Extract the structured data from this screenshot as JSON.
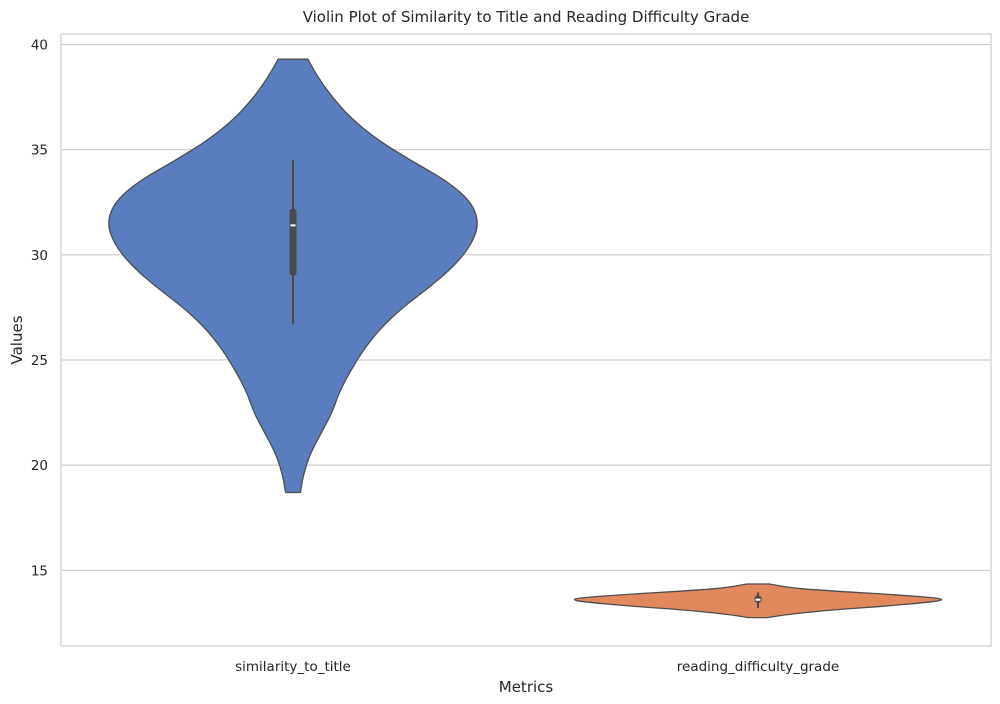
{
  "chart_data": {
    "type": "violin",
    "title": "Violin Plot of Similarity to Title and Reading Difficulty Grade",
    "xlabel": "Metrics",
    "ylabel": "Values",
    "ylim": [
      11.4,
      40.5
    ],
    "yticks": [
      15,
      20,
      25,
      30,
      35,
      40
    ],
    "grid": true,
    "categories": [
      "similarity_to_title",
      "reading_difficulty_grade"
    ],
    "colors": [
      "#5a7dc0",
      "#e1885d"
    ],
    "series": [
      {
        "category": "similarity_to_title",
        "min": 18.7,
        "max": 39.3,
        "whisker_low": 26.7,
        "q1": 29.0,
        "median": 31.4,
        "q3": 32.2,
        "whisker_high": 34.5,
        "density": [
          [
            18.7,
            0.04
          ],
          [
            19.5,
            0.055
          ],
          [
            20.5,
            0.09
          ],
          [
            21.5,
            0.15
          ],
          [
            22.5,
            0.21
          ],
          [
            23.5,
            0.25
          ],
          [
            24.5,
            0.31
          ],
          [
            25.5,
            0.38
          ],
          [
            26.5,
            0.47
          ],
          [
            27.5,
            0.59
          ],
          [
            28.5,
            0.74
          ],
          [
            29.5,
            0.87
          ],
          [
            30.5,
            0.96
          ],
          [
            31.5,
            1.0
          ],
          [
            32.5,
            0.96
          ],
          [
            33.5,
            0.83
          ],
          [
            34.5,
            0.63
          ],
          [
            35.5,
            0.45
          ],
          [
            36.5,
            0.31
          ],
          [
            37.5,
            0.21
          ],
          [
            38.5,
            0.13
          ],
          [
            39.3,
            0.08
          ]
        ]
      },
      {
        "category": "reading_difficulty_grade",
        "min": 12.75,
        "max": 14.35,
        "whisker_low": 13.2,
        "q1": 13.45,
        "median": 13.6,
        "q3": 13.8,
        "whisker_high": 13.95,
        "density": [
          [
            12.75,
            0.05
          ],
          [
            12.9,
            0.16
          ],
          [
            13.1,
            0.37
          ],
          [
            13.3,
            0.7
          ],
          [
            13.5,
            0.94
          ],
          [
            13.6,
            1.0
          ],
          [
            13.7,
            0.95
          ],
          [
            13.85,
            0.72
          ],
          [
            14.0,
            0.42
          ],
          [
            14.15,
            0.19
          ],
          [
            14.35,
            0.06
          ]
        ]
      }
    ]
  }
}
